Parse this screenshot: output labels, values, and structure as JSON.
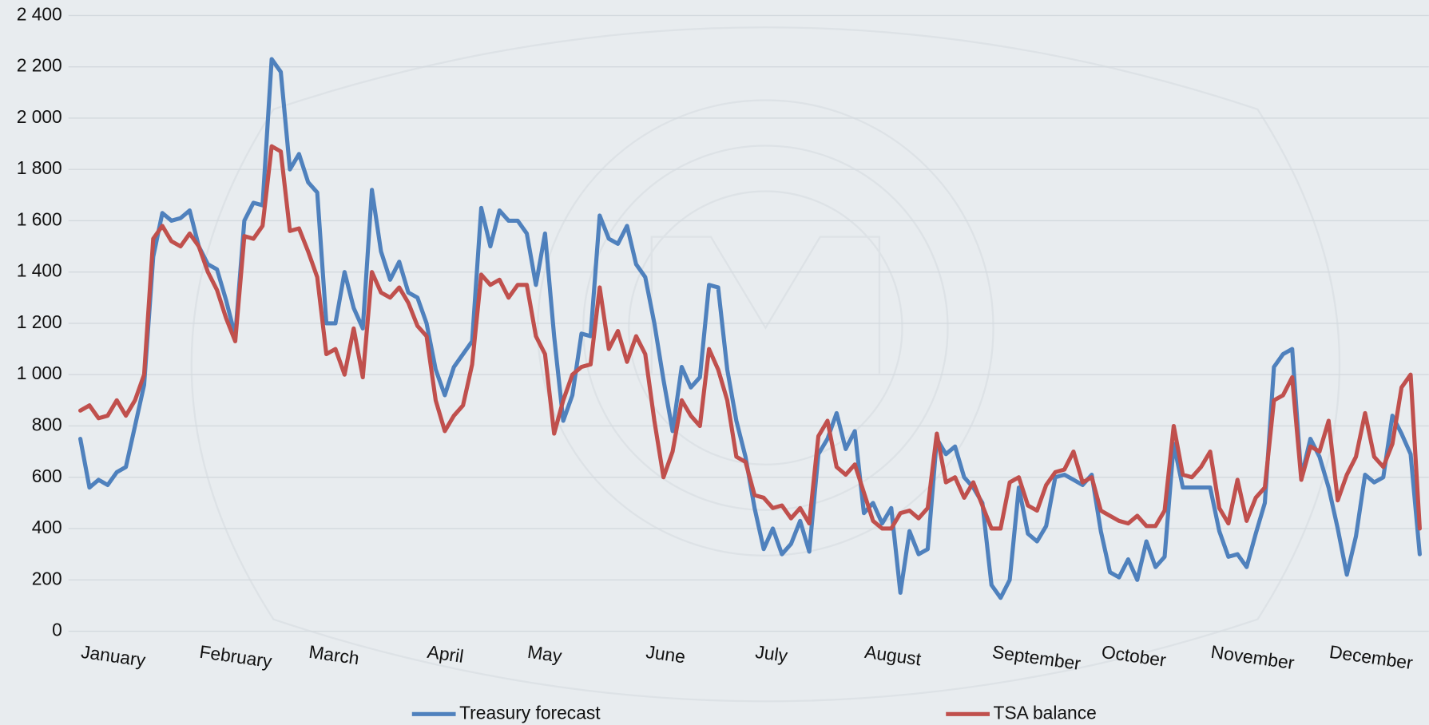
{
  "chart_data": {
    "type": "line",
    "categories": [
      "January",
      null,
      null,
      null,
      null,
      null,
      null,
      null,
      null,
      null,
      null,
      null,
      null,
      "February",
      null,
      null,
      null,
      null,
      null,
      null,
      null,
      null,
      null,
      null,
      null,
      "March",
      null,
      null,
      null,
      null,
      null,
      null,
      null,
      null,
      null,
      null,
      null,
      null,
      "April",
      null,
      null,
      null,
      null,
      null,
      null,
      null,
      null,
      null,
      null,
      "May",
      null,
      null,
      null,
      null,
      null,
      null,
      null,
      null,
      null,
      null,
      null,
      null,
      "June",
      null,
      null,
      null,
      null,
      null,
      null,
      null,
      null,
      null,
      null,
      null,
      "July",
      null,
      null,
      null,
      null,
      null,
      null,
      null,
      null,
      null,
      null,
      null,
      "August",
      null,
      null,
      null,
      null,
      null,
      null,
      null,
      null,
      null,
      null,
      null,
      null,
      null,
      "September",
      null,
      null,
      null,
      null,
      null,
      null,
      null,
      null,
      null,
      null,
      null,
      "October",
      null,
      null,
      null,
      null,
      null,
      null,
      null,
      null,
      null,
      null,
      null,
      "November",
      null,
      null,
      null,
      null,
      null,
      null,
      null,
      null,
      null,
      null,
      null,
      null,
      "December",
      null,
      null,
      null,
      null,
      null,
      null,
      null,
      null,
      null,
      null
    ],
    "series": [
      {
        "name": "Treasury forecast",
        "color": "#4f81bd",
        "values": [
          750,
          560,
          590,
          570,
          620,
          640,
          800,
          960,
          1460,
          1630,
          1600,
          1610,
          1640,
          1500,
          1430,
          1410,
          1290,
          1150,
          1600,
          1670,
          1660,
          2230,
          2180,
          1800,
          1860,
          1750,
          1710,
          1200,
          1200,
          1400,
          1260,
          1180,
          1720,
          1480,
          1370,
          1440,
          1320,
          1300,
          1200,
          1020,
          920,
          1030,
          1080,
          1130,
          1650,
          1500,
          1640,
          1600,
          1600,
          1550,
          1350,
          1550,
          1150,
          820,
          920,
          1160,
          1150,
          1620,
          1530,
          1510,
          1580,
          1430,
          1380,
          1200,
          980,
          780,
          1030,
          950,
          990,
          1350,
          1340,
          1020,
          820,
          680,
          480,
          320,
          400,
          300,
          340,
          430,
          310,
          690,
          750,
          850,
          710,
          780,
          460,
          500,
          420,
          480,
          150,
          390,
          300,
          320,
          750,
          690,
          720,
          600,
          560,
          500,
          180,
          130,
          200,
          560,
          380,
          350,
          410,
          600,
          610,
          590,
          570,
          610,
          390,
          230,
          210,
          280,
          200,
          350,
          250,
          290,
          730,
          560,
          560,
          560,
          560,
          390,
          290,
          300,
          250,
          380,
          500,
          1030,
          1080,
          1100,
          600,
          750,
          680,
          560,
          400,
          220,
          370,
          610,
          580,
          600,
          840,
          770,
          690,
          300
        ]
      },
      {
        "name": "TSA balance",
        "color": "#c0504d",
        "values": [
          860,
          880,
          830,
          840,
          900,
          840,
          900,
          1000,
          1530,
          1580,
          1520,
          1500,
          1550,
          1500,
          1400,
          1330,
          1220,
          1130,
          1540,
          1530,
          1580,
          1890,
          1870,
          1560,
          1570,
          1480,
          1380,
          1080,
          1100,
          1000,
          1180,
          990,
          1400,
          1320,
          1300,
          1340,
          1280,
          1190,
          1150,
          900,
          780,
          840,
          880,
          1040,
          1390,
          1350,
          1370,
          1300,
          1350,
          1350,
          1150,
          1080,
          770,
          900,
          1000,
          1030,
          1040,
          1340,
          1100,
          1170,
          1050,
          1150,
          1080,
          820,
          600,
          700,
          900,
          840,
          800,
          1100,
          1020,
          900,
          680,
          660,
          530,
          520,
          480,
          490,
          440,
          480,
          420,
          760,
          820,
          640,
          610,
          650,
          540,
          430,
          400,
          400,
          460,
          470,
          440,
          480,
          770,
          580,
          600,
          520,
          580,
          490,
          400,
          400,
          580,
          600,
          490,
          470,
          570,
          620,
          630,
          700,
          580,
          600,
          470,
          450,
          430,
          420,
          450,
          410,
          410,
          470,
          800,
          610,
          600,
          640,
          700,
          480,
          420,
          590,
          430,
          520,
          560,
          900,
          920,
          990,
          590,
          720,
          700,
          820,
          510,
          610,
          680,
          850,
          680,
          640,
          730,
          950,
          1000,
          400
        ]
      }
    ],
    "ylim": [
      0,
      2400
    ],
    "yticks": [
      0,
      200,
      400,
      600,
      800,
      {
        "value": 1000,
        "label": "1 000"
      },
      {
        "value": 1200,
        "label": "1 200"
      },
      {
        "value": 1400,
        "label": "1 400"
      },
      {
        "value": 1600,
        "label": "1 600"
      },
      {
        "value": 1800,
        "label": "1 800"
      },
      {
        "value": 2000,
        "label": "2 000"
      },
      {
        "value": 2200,
        "label": "2 200"
      },
      {
        "value": 2400,
        "label": "2 400"
      }
    ],
    "grid": true,
    "legend": "bottom"
  }
}
